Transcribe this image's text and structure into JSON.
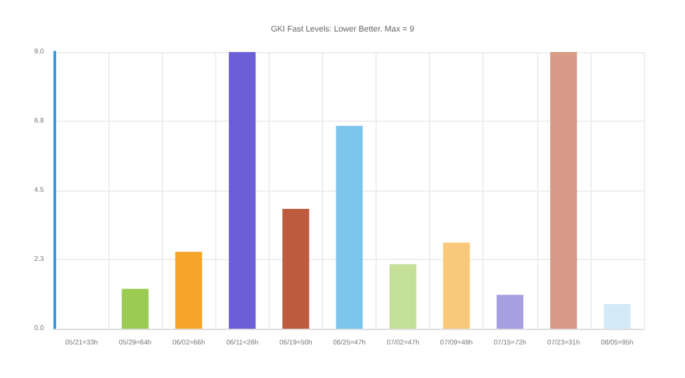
{
  "chart_data": {
    "type": "bar",
    "title": "GKI Fast Levels: Lower Better. Max = 9",
    "categories": [
      "05/21=33h",
      "05/29=64h",
      "06/02=66h",
      "06/11=26h",
      "06/19=50h",
      "06/25=47h",
      "07/02=47h",
      "07/09=49h",
      "07/15=72h",
      "07/23=31h",
      "08/05=95h"
    ],
    "values": [
      0,
      1.3,
      2.5,
      9,
      3.9,
      6.6,
      2.1,
      2.8,
      1.1,
      9,
      0.8
    ],
    "colors": [
      "#2f9be8",
      "#9ccb54",
      "#f5a52a",
      "#6c5fd5",
      "#bc5b3d",
      "#7cc6ec",
      "#c3df98",
      "#f9c97b",
      "#a89fe2",
      "#d99a88",
      "#d4eaf8"
    ],
    "ylim": [
      0,
      9
    ],
    "yticks": [
      {
        "value": 0,
        "label": "0.0"
      },
      {
        "value": 2.25,
        "label": "2.3"
      },
      {
        "value": 4.5,
        "label": "4.5"
      },
      {
        "value": 6.75,
        "label": "6.8"
      },
      {
        "value": 9,
        "label": "9.0"
      }
    ],
    "grid": true
  }
}
